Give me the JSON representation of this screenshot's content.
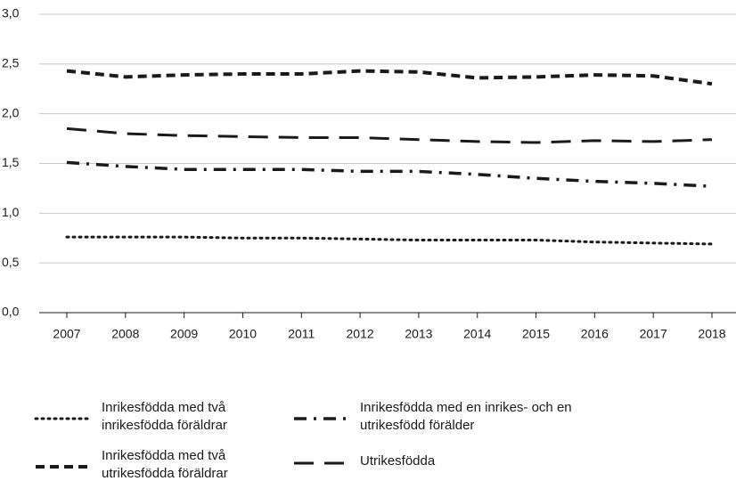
{
  "chart_data": {
    "type": "line",
    "x": [
      2007,
      2008,
      2009,
      2010,
      2011,
      2012,
      2013,
      2014,
      2015,
      2016,
      2017,
      2018
    ],
    "series": [
      {
        "name": "Inrikesfödda med två inrikesfödda föräldrar",
        "color": "#1a1a1a",
        "linestyle": "dotted",
        "values": [
          0.76,
          0.76,
          0.76,
          0.75,
          0.75,
          0.74,
          0.73,
          0.73,
          0.73,
          0.71,
          0.7,
          0.69
        ]
      },
      {
        "name": "Inrikesfödda med en inrikes- och en utrikesfödd förälder",
        "color": "#1a1a1a",
        "linestyle": "dashdot",
        "values": [
          1.51,
          1.47,
          1.44,
          1.44,
          1.44,
          1.42,
          1.42,
          1.39,
          1.35,
          1.32,
          1.3,
          1.27
        ]
      },
      {
        "name": "Inrikesfödda med två utrikesfödda föräldrar",
        "color": "#1a1a1a",
        "linestyle": "dashed",
        "values": [
          2.43,
          2.37,
          2.39,
          2.4,
          2.4,
          2.43,
          2.42,
          2.36,
          2.37,
          2.39,
          2.38,
          2.3
        ]
      },
      {
        "name": "Utrikesfödda",
        "color": "#1a1a1a",
        "linestyle": "longdash",
        "values": [
          1.85,
          1.8,
          1.78,
          1.77,
          1.76,
          1.76,
          1.74,
          1.72,
          1.71,
          1.73,
          1.72,
          1.74
        ]
      }
    ],
    "ylim": [
      0,
      3
    ],
    "yticks": [
      {
        "value": 0,
        "label": "0,0"
      },
      {
        "value": 0.5,
        "label": "0,5"
      },
      {
        "value": 1,
        "label": "1,0"
      },
      {
        "value": 1.5,
        "label": "1,5"
      },
      {
        "value": 2,
        "label": "2,0"
      },
      {
        "value": 2.5,
        "label": "2,5"
      },
      {
        "value": 3,
        "label": "3,0"
      }
    ],
    "grid": true
  }
}
